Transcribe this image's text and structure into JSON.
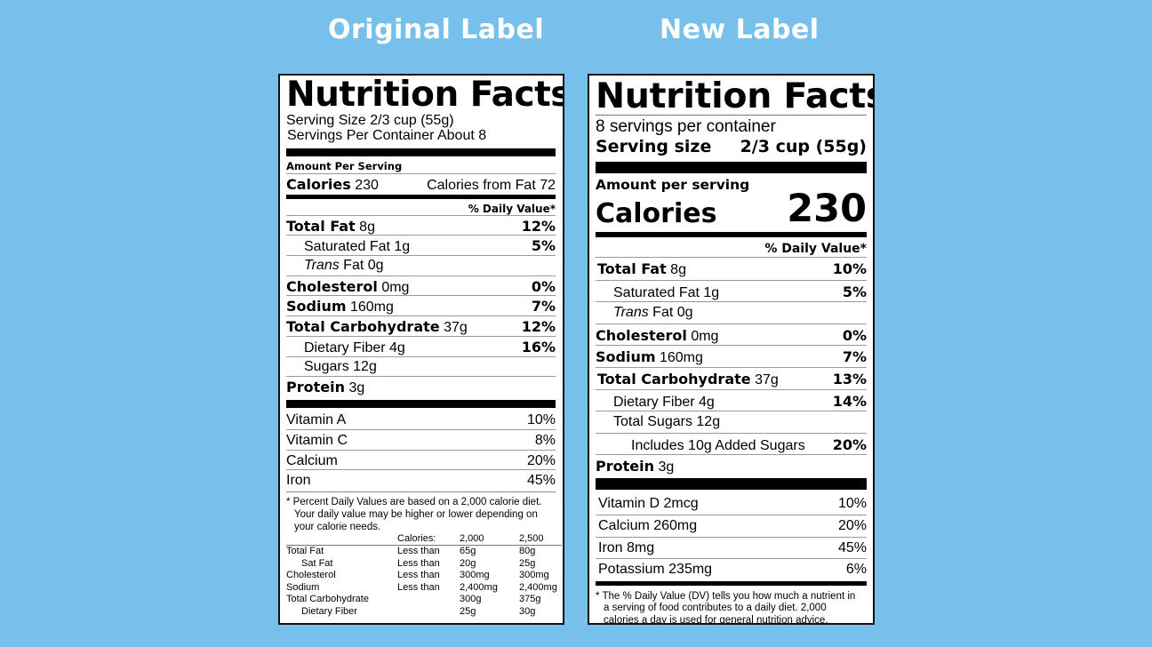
{
  "headings": {
    "original": "Original Label",
    "new": "New Label"
  },
  "original": {
    "title": "Nutrition Facts",
    "serving_size": "Serving Size 2/3 cup (55g)",
    "servings_per_container": "Servings Per Container About 8",
    "amount_per_serving": "Amount Per Serving",
    "calories_label": "Calories",
    "calories_value": "230",
    "calories_from_fat": "Calories from Fat 72",
    "dv_header": "% Daily Value*",
    "nutrients": [
      {
        "name": "Total Fat",
        "amount": "8g",
        "dv": "12%"
      },
      {
        "name": "Saturated Fat",
        "amount": "1g",
        "dv": "5%"
      },
      {
        "name": "Trans",
        "amount": "Fat 0g",
        "dv": ""
      },
      {
        "name": "Cholesterol",
        "amount": "0mg",
        "dv": "0%"
      },
      {
        "name": "Sodium",
        "amount": "160mg",
        "dv": "7%"
      },
      {
        "name": "Total Carbohydrate",
        "amount": "37g",
        "dv": "12%"
      },
      {
        "name": "Dietary Fiber",
        "amount": "4g",
        "dv": "16%"
      },
      {
        "name": "Sugars",
        "amount": "12g",
        "dv": ""
      },
      {
        "name": "Protein",
        "amount": "3g",
        "dv": ""
      }
    ],
    "vitamins": [
      {
        "name": "Vitamin A",
        "dv": "10%"
      },
      {
        "name": "Vitamin C",
        "dv": "8%"
      },
      {
        "name": "Calcium",
        "dv": "20%"
      },
      {
        "name": "Iron",
        "dv": "45%"
      }
    ],
    "footnote": "* Percent Daily Values are based on a 2,000 calorie diet. Your daily value may be higher or lower depending on your calorie needs.",
    "reference": {
      "header": [
        "Calories:",
        "2,000",
        "2,500"
      ],
      "rows": [
        [
          "Total Fat",
          "Less than",
          "65g",
          "80g"
        ],
        [
          "Sat Fat",
          "Less than",
          "20g",
          "25g"
        ],
        [
          "Cholesterol",
          "Less than",
          "300mg",
          "300mg"
        ],
        [
          "Sodium",
          "Less than",
          "2,400mg",
          "2,400mg"
        ],
        [
          "Total Carbohydrate",
          "",
          "300g",
          "375g"
        ],
        [
          "Dietary Fiber",
          "",
          "25g",
          "30g"
        ]
      ]
    }
  },
  "new": {
    "title": "Nutrition Facts",
    "servings_per_container": "8 servings per container",
    "serving_size_label": "Serving size",
    "serving_size_value": "2/3 cup (55g)",
    "amount_per_serving": "Amount per serving",
    "calories_label": "Calories",
    "calories_value": "230",
    "dv_header": "% Daily Value*",
    "nutrients": [
      {
        "name": "Total Fat",
        "amount": "8g",
        "dv": "10%"
      },
      {
        "name": "Saturated Fat",
        "amount": "1g",
        "dv": "5%"
      },
      {
        "name": "Trans",
        "amount": "Fat 0g",
        "dv": ""
      },
      {
        "name": "Cholesterol",
        "amount": "0mg",
        "dv": "0%"
      },
      {
        "name": "Sodium",
        "amount": "160mg",
        "dv": "7%"
      },
      {
        "name": "Total Carbohydrate",
        "amount": "37g",
        "dv": "13%"
      },
      {
        "name": "Dietary Fiber",
        "amount": "4g",
        "dv": "14%"
      },
      {
        "name": "Total Sugars",
        "amount": "12g",
        "dv": ""
      },
      {
        "name": "Includes 10g Added Sugars",
        "amount": "",
        "dv": "20%"
      },
      {
        "name": "Protein",
        "amount": "3g",
        "dv": ""
      }
    ],
    "vitamins": [
      {
        "name": "Vitamin D 2mcg",
        "dv": "10%"
      },
      {
        "name": "Calcium 260mg",
        "dv": "20%"
      },
      {
        "name": "Iron 8mg",
        "dv": "45%"
      },
      {
        "name": "Potassium 235mg",
        "dv": "6%"
      }
    ],
    "footnote": "* The % Daily Value (DV) tells you how much a nutrient in a serving of food contributes to a daily diet. 2,000 calories a day is used for general nutrition advice."
  }
}
